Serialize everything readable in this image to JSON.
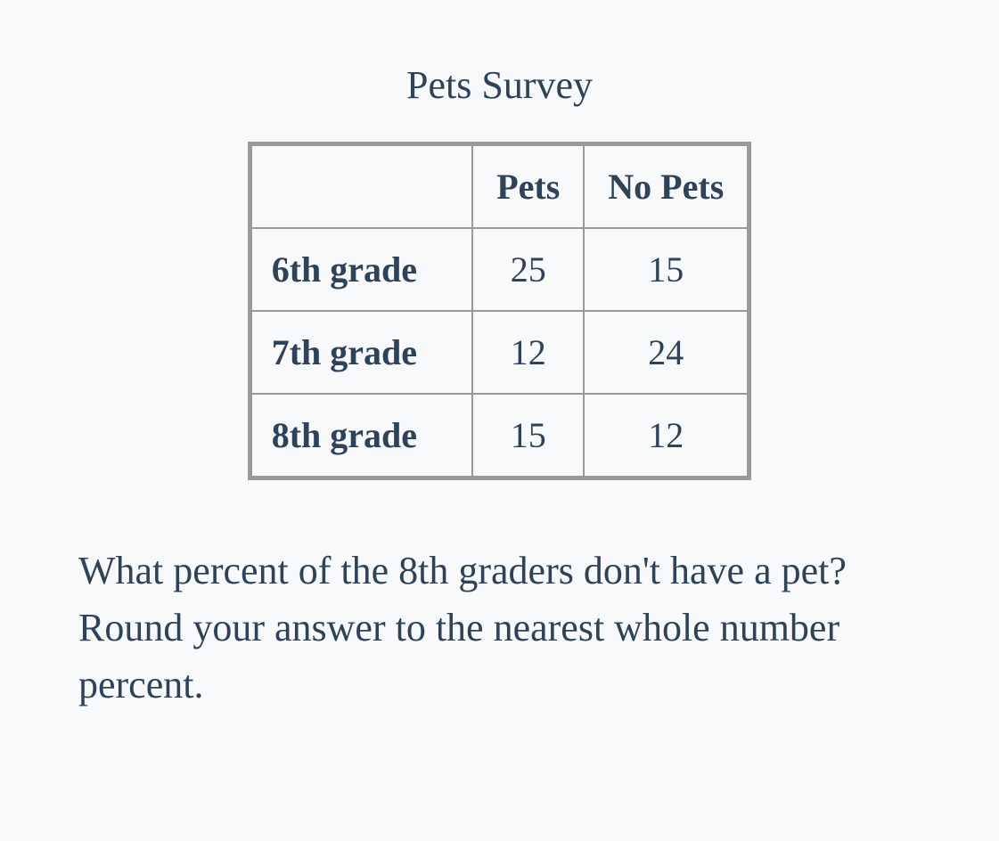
{
  "title": "Pets Survey",
  "table": {
    "columns": [
      "Pets",
      "No Pets"
    ],
    "rows": [
      {
        "label": "6th grade",
        "values": [
          "25",
          "15"
        ]
      },
      {
        "label": "7th grade",
        "values": [
          "12",
          "24"
        ]
      },
      {
        "label": "8th grade",
        "values": [
          "15",
          "12"
        ]
      }
    ],
    "border_color": "#9a9a9a",
    "text_color": "#2e4359",
    "header_fontweight": 700
  },
  "question": "What percent of the 8th graders don't have a pet? Round your answer to the nearest whole number percent.",
  "style": {
    "background": "#f8f9fa",
    "font_family": "Georgia, 'Times New Roman', serif",
    "title_fontsize": 44,
    "cell_fontsize": 40,
    "question_fontsize": 44
  }
}
